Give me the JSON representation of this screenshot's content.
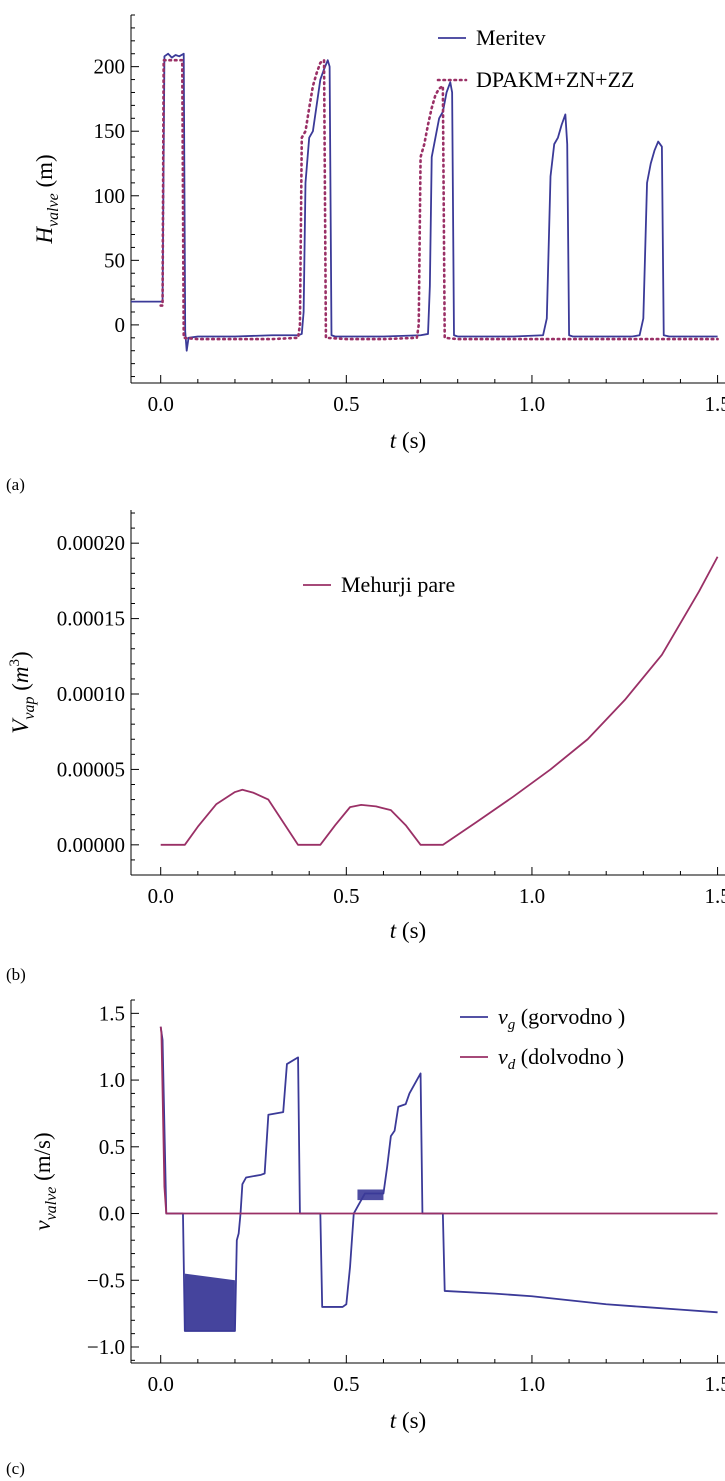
{
  "colors": {
    "measurement": "#3b3a98",
    "model": "#9a3066",
    "vapor": "#9a3066",
    "vg": "#3b3a98",
    "vd": "#9a3066"
  },
  "chart_data": [
    {
      "id": "a",
      "panel_tag": "(a)",
      "type": "line",
      "xlabel": {
        "main": "t",
        "unit": " (s)"
      },
      "ylabel": {
        "main": "H",
        "sub": "valve",
        "unit": " (m)"
      },
      "xlim": [
        -0.08,
        1.52
      ],
      "ylim": [
        -45,
        240
      ],
      "xticks": [
        0.0,
        0.5,
        1.0,
        1.5
      ],
      "xtick_labels": [
        "0.0",
        "0.5",
        "1.0",
        "1.5"
      ],
      "yticks": [
        0,
        50,
        100,
        150,
        200
      ],
      "ytick_labels": [
        "0",
        "50",
        "100",
        "150",
        "200"
      ],
      "legend": {
        "position": "top-right"
      },
      "series": [
        {
          "name": "Meritev",
          "style": "solid",
          "color": "#3b3a98",
          "points": [
            [
              -0.08,
              18
            ],
            [
              0.005,
              18
            ],
            [
              0.01,
              208
            ],
            [
              0.02,
              210
            ],
            [
              0.03,
              207
            ],
            [
              0.04,
              209
            ],
            [
              0.05,
              208
            ],
            [
              0.062,
              210
            ],
            [
              0.066,
              -5
            ],
            [
              0.07,
              -20
            ],
            [
              0.075,
              -10
            ],
            [
              0.1,
              -9
            ],
            [
              0.2,
              -9
            ],
            [
              0.3,
              -8
            ],
            [
              0.37,
              -8
            ],
            [
              0.38,
              -7
            ],
            [
              0.385,
              10
            ],
            [
              0.39,
              110
            ],
            [
              0.4,
              145
            ],
            [
              0.41,
              150
            ],
            [
              0.42,
              170
            ],
            [
              0.43,
              190
            ],
            [
              0.44,
              198
            ],
            [
              0.45,
              205
            ],
            [
              0.455,
              200
            ],
            [
              0.46,
              -8
            ],
            [
              0.47,
              -9
            ],
            [
              0.6,
              -9
            ],
            [
              0.7,
              -8
            ],
            [
              0.72,
              -7
            ],
            [
              0.725,
              30
            ],
            [
              0.73,
              130
            ],
            [
              0.74,
              145
            ],
            [
              0.75,
              160
            ],
            [
              0.76,
              165
            ],
            [
              0.77,
              180
            ],
            [
              0.78,
              188
            ],
            [
              0.785,
              180
            ],
            [
              0.79,
              -8
            ],
            [
              0.8,
              -9
            ],
            [
              0.95,
              -9
            ],
            [
              1.03,
              -8
            ],
            [
              1.04,
              5
            ],
            [
              1.05,
              115
            ],
            [
              1.06,
              140
            ],
            [
              1.07,
              145
            ],
            [
              1.08,
              155
            ],
            [
              1.09,
              163
            ],
            [
              1.095,
              140
            ],
            [
              1.1,
              -8
            ],
            [
              1.11,
              -9
            ],
            [
              1.27,
              -9
            ],
            [
              1.29,
              -8
            ],
            [
              1.3,
              5
            ],
            [
              1.31,
              110
            ],
            [
              1.32,
              125
            ],
            [
              1.33,
              135
            ],
            [
              1.34,
              142
            ],
            [
              1.35,
              138
            ],
            [
              1.355,
              -8
            ],
            [
              1.37,
              -9
            ],
            [
              1.5,
              -9
            ]
          ]
        },
        {
          "name": "DPAKM+ZN+ZZ",
          "style": "dotted",
          "color": "#9a3066",
          "points": [
            [
              0.0,
              15
            ],
            [
              0.005,
              15
            ],
            [
              0.008,
              205
            ],
            [
              0.03,
              205
            ],
            [
              0.05,
              205
            ],
            [
              0.058,
              205
            ],
            [
              0.062,
              -10
            ],
            [
              0.1,
              -11
            ],
            [
              0.2,
              -11
            ],
            [
              0.3,
              -11
            ],
            [
              0.37,
              -10
            ],
            [
              0.375,
              0
            ],
            [
              0.38,
              145
            ],
            [
              0.39,
              150
            ],
            [
              0.4,
              168
            ],
            [
              0.41,
              185
            ],
            [
              0.42,
              195
            ],
            [
              0.43,
              203
            ],
            [
              0.44,
              205
            ],
            [
              0.445,
              -10
            ],
            [
              0.5,
              -11
            ],
            [
              0.6,
              -11
            ],
            [
              0.69,
              -10
            ],
            [
              0.695,
              0
            ],
            [
              0.7,
              130
            ],
            [
              0.71,
              140
            ],
            [
              0.72,
              155
            ],
            [
              0.73,
              168
            ],
            [
              0.74,
              178
            ],
            [
              0.75,
              183
            ],
            [
              0.76,
              185
            ],
            [
              0.765,
              -10
            ],
            [
              0.8,
              -11
            ],
            [
              1.0,
              -11
            ],
            [
              1.2,
              -11
            ],
            [
              1.5,
              -11
            ]
          ]
        }
      ]
    },
    {
      "id": "b",
      "panel_tag": "(b)",
      "type": "line",
      "xlabel": {
        "main": "t",
        "unit": " (s)"
      },
      "ylabel": {
        "main": "V",
        "sub": "vap",
        "unit_open": " (",
        "unit_main": "m",
        "unit_sup": "3",
        "unit_close": ")"
      },
      "xlim": [
        -0.08,
        1.52
      ],
      "ylim": [
        -2e-05,
        0.000222
      ],
      "xticks": [
        0.0,
        0.5,
        1.0,
        1.5
      ],
      "xtick_labels": [
        "0.0",
        "0.5",
        "1.0",
        "1.5"
      ],
      "yticks": [
        0.0,
        5e-05,
        0.0001,
        0.00015,
        0.0002
      ],
      "ytick_labels": [
        "0.00000",
        "0.00005",
        "0.00010",
        "0.00015",
        "0.00020"
      ],
      "legend": {
        "position": "top-center"
      },
      "series": [
        {
          "name": "Mehurji pare",
          "style": "solid",
          "color": "#9a3066",
          "points": [
            [
              0.0,
              0.0
            ],
            [
              0.065,
              0.0
            ],
            [
              0.1,
              1.2e-05
            ],
            [
              0.15,
              2.7e-05
            ],
            [
              0.2,
              3.5e-05
            ],
            [
              0.22,
              3.65e-05
            ],
            [
              0.25,
              3.45e-05
            ],
            [
              0.29,
              3e-05
            ],
            [
              0.33,
              1.5e-05
            ],
            [
              0.37,
              0.0
            ],
            [
              0.43,
              0.0
            ],
            [
              0.47,
              1.3e-05
            ],
            [
              0.51,
              2.5e-05
            ],
            [
              0.54,
              2.65e-05
            ],
            [
              0.58,
              2.55e-05
            ],
            [
              0.62,
              2.3e-05
            ],
            [
              0.66,
              1.3e-05
            ],
            [
              0.7,
              0.0
            ],
            [
              0.76,
              0.0
            ],
            [
              0.85,
              1.5e-05
            ],
            [
              0.95,
              3.2e-05
            ],
            [
              1.05,
              5e-05
            ],
            [
              1.15,
              7e-05
            ],
            [
              1.25,
              9.6e-05
            ],
            [
              1.35,
              0.000126
            ],
            [
              1.45,
              0.000168
            ],
            [
              1.5,
              0.000191
            ]
          ]
        }
      ]
    },
    {
      "id": "c",
      "panel_tag": "(c)",
      "type": "line",
      "xlabel": {
        "main": "t",
        "unit": " (s)"
      },
      "ylabel": {
        "main": "v",
        "sub": "valve",
        "unit": " (m/s)"
      },
      "xlim": [
        -0.08,
        1.52
      ],
      "ylim": [
        -1.12,
        1.6
      ],
      "xticks": [
        0.0,
        0.5,
        1.0,
        1.5
      ],
      "xtick_labels": [
        "0.0",
        "0.5",
        "1.0",
        "1.5"
      ],
      "yticks": [
        -1.0,
        -0.5,
        0.0,
        0.5,
        1.0,
        1.5
      ],
      "ytick_labels": [
        "−1.0",
        "−0.5",
        "0.0",
        "0.5",
        "1.0",
        "1.5"
      ],
      "legend": {
        "position": "top-right"
      },
      "series": [
        {
          "name_main": "v",
          "name_sub": "g",
          "name_rest": " (gorvodno )",
          "style": "solid",
          "color": "#3b3a98",
          "points": [
            [
              0.0,
              1.4
            ],
            [
              0.005,
              1.3
            ],
            [
              0.015,
              0.0
            ],
            [
              0.06,
              0.0
            ],
            [
              0.065,
              -0.88
            ],
            [
              0.2,
              -0.88
            ],
            [
              0.205,
              -0.2
            ],
            [
              0.21,
              -0.15
            ],
            [
              0.215,
              0.0
            ],
            [
              0.22,
              0.22
            ],
            [
              0.23,
              0.27
            ],
            [
              0.27,
              0.29
            ],
            [
              0.28,
              0.3
            ],
            [
              0.29,
              0.74
            ],
            [
              0.33,
              0.76
            ],
            [
              0.34,
              1.12
            ],
            [
              0.37,
              1.17
            ],
            [
              0.375,
              0.0
            ],
            [
              0.43,
              0.0
            ],
            [
              0.435,
              -0.7
            ],
            [
              0.49,
              -0.7
            ],
            [
              0.5,
              -0.68
            ],
            [
              0.51,
              -0.4
            ],
            [
              0.52,
              0.0
            ],
            [
              0.53,
              0.05
            ],
            [
              0.55,
              0.15
            ],
            [
              0.6,
              0.15
            ],
            [
              0.61,
              0.35
            ],
            [
              0.62,
              0.58
            ],
            [
              0.63,
              0.62
            ],
            [
              0.64,
              0.8
            ],
            [
              0.66,
              0.82
            ],
            [
              0.67,
              0.9
            ],
            [
              0.69,
              1.0
            ],
            [
              0.7,
              1.05
            ],
            [
              0.705,
              0.0
            ],
            [
              0.76,
              0.0
            ],
            [
              0.765,
              -0.58
            ],
            [
              0.9,
              -0.6
            ],
            [
              1.0,
              -0.62
            ],
            [
              1.1,
              -0.65
            ],
            [
              1.2,
              -0.68
            ],
            [
              1.3,
              -0.7
            ],
            [
              1.4,
              -0.72
            ],
            [
              1.5,
              -0.74
            ]
          ],
          "band": {
            "from": 0.065,
            "to": 0.2,
            "top_start": -0.45,
            "top_end": -0.5,
            "bottom": -0.88
          },
          "band2": {
            "from": 0.53,
            "to": 0.6,
            "top": 0.18,
            "bottom": 0.1
          }
        },
        {
          "name_main": "v",
          "name_sub": "d",
          "name_rest": " (dolvodno )",
          "style": "solid",
          "color": "#9a3066",
          "points": [
            [
              0.0,
              1.4
            ],
            [
              0.002,
              1.35
            ],
            [
              0.01,
              0.2
            ],
            [
              0.015,
              0.0
            ],
            [
              0.1,
              0.0
            ],
            [
              0.5,
              0.0
            ],
            [
              1.0,
              0.0
            ],
            [
              1.5,
              0.0
            ]
          ]
        }
      ]
    }
  ]
}
